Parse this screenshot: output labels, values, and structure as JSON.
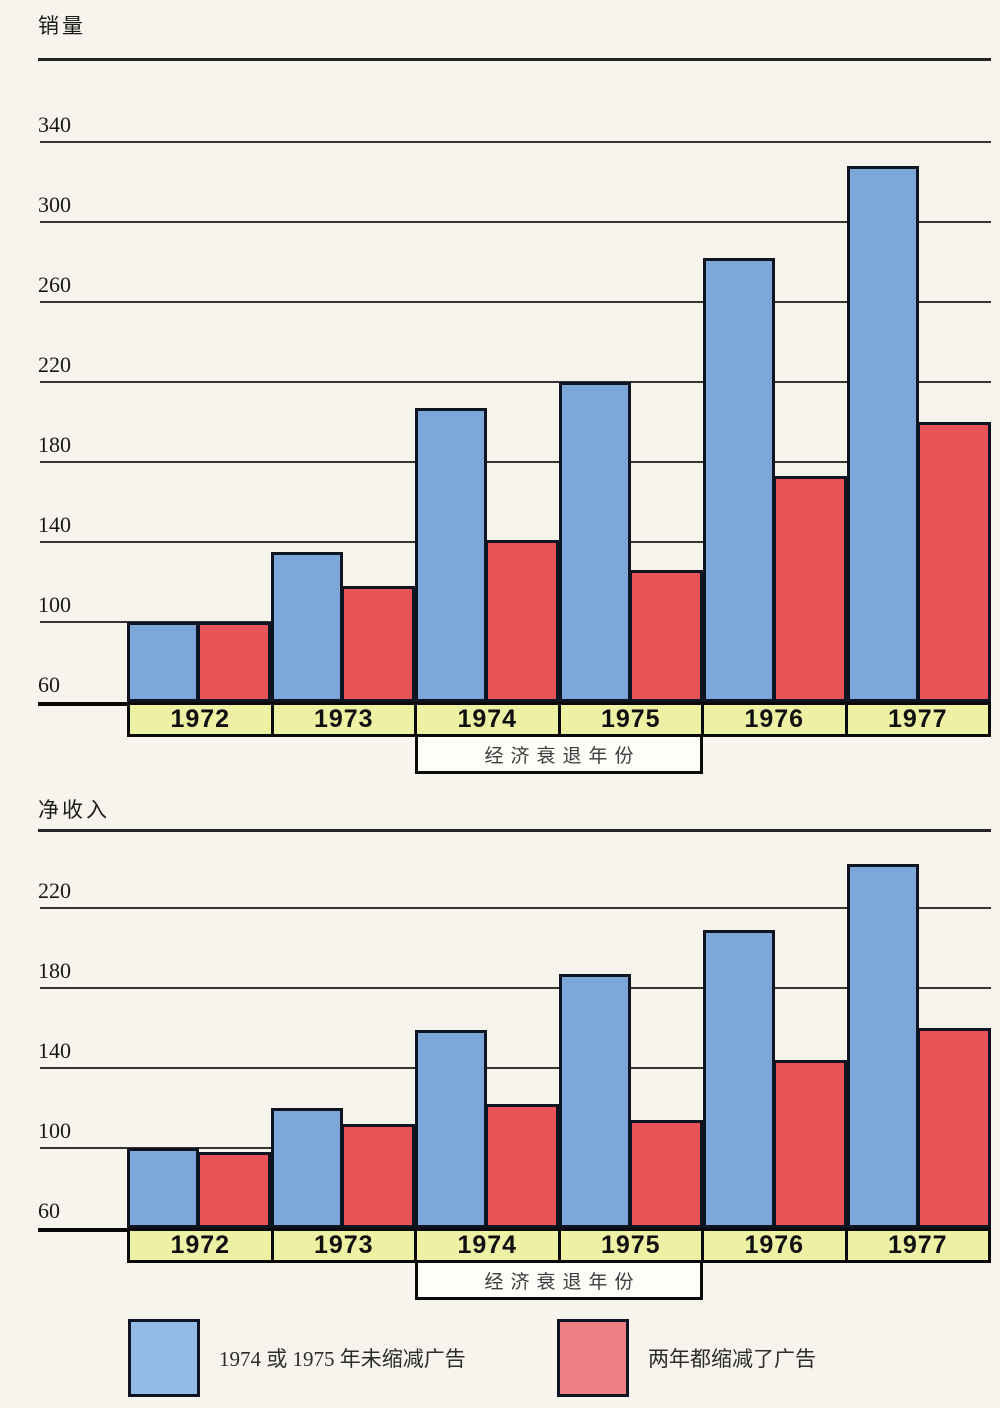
{
  "colors": {
    "background": "#f7f4ee",
    "bar_blue": "#7da7d9",
    "bar_red": "#e95459",
    "legend_blue": "#92bbe5",
    "legend_red": "#ee7f84",
    "band_yellow": "#eef0a3",
    "box_white": "#fdfdfa"
  },
  "recession_label": "经济衰退年份",
  "legend": {
    "items": [
      {
        "label": "1974 或 1975 年未缩减广告",
        "color_key": "legend_blue",
        "swatch": "blue"
      },
      {
        "label": "两年都缩减了广告",
        "color_key": "legend_red",
        "swatch": "red"
      }
    ]
  },
  "chart_data": [
    {
      "type": "bar",
      "title": "销量",
      "categories": [
        "1972",
        "1973",
        "1974",
        "1975",
        "1976",
        "1977"
      ],
      "series": [
        {
          "name": "1974 或 1975 年未缩减广告",
          "color_key": "bar_blue",
          "values": [
            100,
            135,
            207,
            220,
            282,
            328
          ]
        },
        {
          "name": "两年都缩减了广告",
          "color_key": "bar_red",
          "values": [
            100,
            118,
            141,
            126,
            173,
            200
          ]
        }
      ],
      "ybase": 60,
      "yticks": [
        340,
        300,
        260,
        220,
        180,
        140,
        100,
        60
      ],
      "ylim": [
        60,
        382
      ],
      "grid": true,
      "annotation": "经济衰退年份",
      "annotation_years": [
        "1974",
        "1975"
      ],
      "legend_position": "bottom"
    },
    {
      "type": "bar",
      "title": "净收入",
      "categories": [
        "1972",
        "1973",
        "1974",
        "1975",
        "1976",
        "1977"
      ],
      "series": [
        {
          "name": "1974 或 1975 年未缩减广告",
          "color_key": "bar_blue",
          "values": [
            100,
            120,
            159,
            187,
            209,
            242
          ]
        },
        {
          "name": "两年都缩减了广告",
          "color_key": "bar_red",
          "values": [
            98,
            112,
            122,
            114,
            144,
            160
          ]
        }
      ],
      "ybase": 60,
      "yticks": [
        220,
        180,
        140,
        100,
        60
      ],
      "ylim": [
        60,
        260
      ],
      "grid": true,
      "annotation": "经济衰退年份",
      "annotation_years": [
        "1974",
        "1975"
      ],
      "legend_position": "bottom"
    }
  ]
}
